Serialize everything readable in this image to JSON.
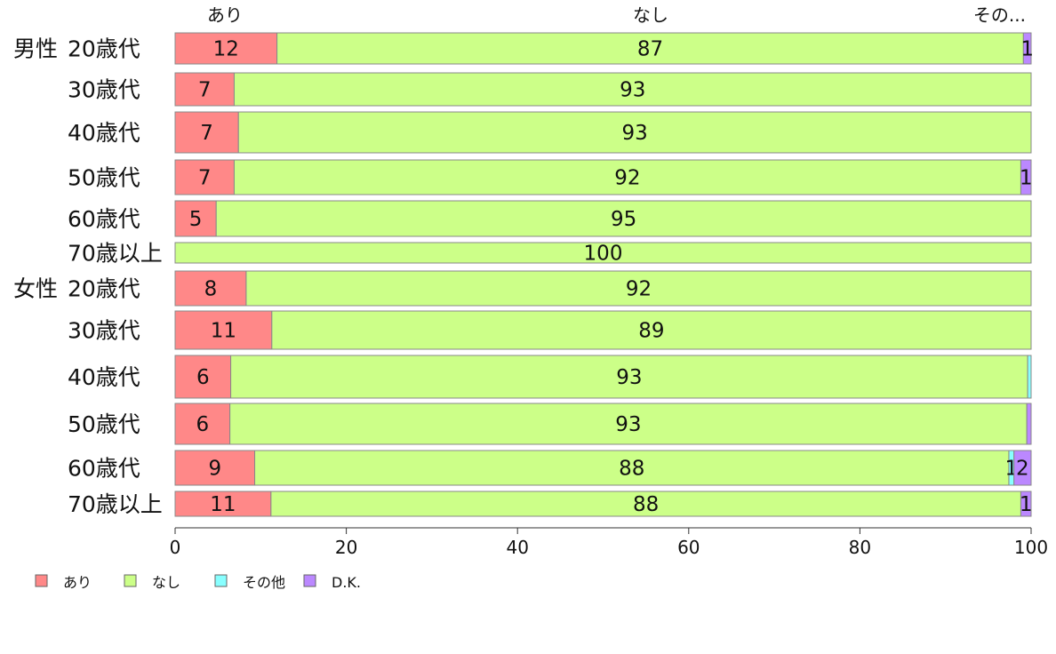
{
  "chart_data": {
    "type": "bar",
    "orientation": "horizontal",
    "stacked": true,
    "top_labels": [
      "あり",
      "なし",
      "その..."
    ],
    "group_labels": [
      {
        "label": "男性",
        "start_row": 0
      },
      {
        "label": "女性",
        "start_row": 6
      }
    ],
    "categories": [
      "20歳代",
      "30歳代",
      "40歳代",
      "50歳代",
      "60歳代",
      "70歳以上",
      "20歳代",
      "30歳代",
      "40歳代",
      "50歳代",
      "60歳代",
      "70歳以上"
    ],
    "series": [
      {
        "name": "あり",
        "color": "#ff8888",
        "values": [
          11.9,
          6.9,
          7.4,
          6.9,
          4.8,
          0,
          8.3,
          11.3,
          6.5,
          6.4,
          9.3,
          11.2
        ]
      },
      {
        "name": "なし",
        "color": "#ccff88",
        "values": [
          87.2,
          93.1,
          92.6,
          91.9,
          95.2,
          100,
          91.7,
          88.7,
          93.1,
          93.1,
          88.1,
          87.6
        ]
      },
      {
        "name": "その他",
        "color": "#88ffff",
        "values": [
          0,
          0,
          0,
          0,
          0,
          0,
          0,
          0,
          0.4,
          0,
          0.6,
          0
        ]
      },
      {
        "name": "D.K.",
        "color": "#bb88ff",
        "values": [
          0.9,
          0,
          0,
          1.2,
          0,
          0,
          0,
          0,
          0,
          0.5,
          2.0,
          1.2
        ]
      }
    ],
    "data_labels": [
      [
        "12",
        "87",
        "",
        "1"
      ],
      [
        "7",
        "93",
        "",
        ""
      ],
      [
        "7",
        "93",
        "",
        ""
      ],
      [
        "7",
        "92",
        "",
        "1"
      ],
      [
        "5",
        "95",
        "",
        ""
      ],
      [
        "",
        "100",
        "",
        ""
      ],
      [
        "8",
        "92",
        "",
        ""
      ],
      [
        "11",
        "89",
        "",
        ""
      ],
      [
        "6",
        "93",
        "",
        ""
      ],
      [
        "6",
        "93",
        "",
        ""
      ],
      [
        "9",
        "88",
        "1",
        "2"
      ],
      [
        "11",
        "88",
        "",
        "1"
      ]
    ],
    "x_ticks": [
      "0",
      "20",
      "40",
      "60",
      "80",
      "100"
    ],
    "xlim": [
      0,
      100
    ],
    "grid": false,
    "legend_position": "bottom-left",
    "title": "",
    "xlabel": "",
    "ylabel": ""
  }
}
